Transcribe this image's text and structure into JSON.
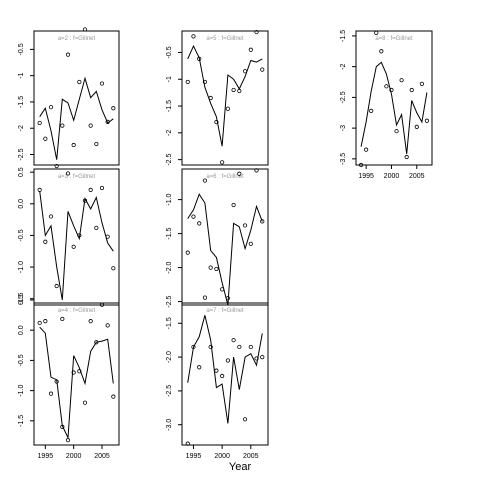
{
  "figure": {
    "xlabel": "Year"
  },
  "chart_data": [
    {
      "type": "line",
      "title": "a=2  :  f=Gillnet",
      "xlim": [
        1993,
        2008
      ],
      "ylim": [
        -2.7,
        -0.15
      ],
      "yticks": [
        -2.5,
        -2.0,
        -1.5,
        -1.0,
        -0.5
      ],
      "ytick_labels": [
        "-2.5",
        "-2",
        "-1.5",
        "-1",
        "-0.5"
      ],
      "xticks": [],
      "xtick_labels": [],
      "series": [
        {
          "kind": "fit",
          "x": [
            1994,
            1995,
            1996,
            1997,
            1998,
            1999,
            2000,
            2001,
            2002,
            2003,
            2004,
            2005,
            2006,
            2007
          ],
          "y": [
            -1.78,
            -1.62,
            -2.05,
            -2.6,
            -1.45,
            -1.52,
            -1.85,
            -1.45,
            -1.05,
            -1.42,
            -1.3,
            -1.65,
            -1.9,
            -1.82
          ]
        },
        {
          "kind": "observed",
          "x": [
            1994,
            1995,
            1996,
            1997,
            1998,
            1999,
            2000,
            2001,
            2002,
            2003,
            2004,
            2005,
            2006,
            2007
          ],
          "y": [
            -1.9,
            -2.2,
            -1.6,
            -2.72,
            -1.95,
            -0.6,
            -2.32,
            -1.12,
            -0.12,
            -1.95,
            -2.3,
            -1.15,
            -1.88,
            -1.62
          ]
        }
      ]
    },
    {
      "type": "line",
      "title": "a=5  :  f=Gillnet",
      "xlim": [
        1993,
        2008
      ],
      "ylim": [
        -2.6,
        -0.1
      ],
      "yticks": [
        -2.5,
        -2.0,
        -1.5,
        -1.0,
        -0.5
      ],
      "ytick_labels": [
        "-2.5",
        "-2",
        "-1.5",
        "-1",
        "-0.5"
      ],
      "xticks": [],
      "xtick_labels": [],
      "series": [
        {
          "kind": "fit",
          "x": [
            1994,
            1995,
            1996,
            1997,
            1998,
            1999,
            2000,
            2001,
            2002,
            2003,
            2004,
            2005,
            2006,
            2007
          ],
          "y": [
            -0.62,
            -0.38,
            -0.6,
            -1.15,
            -1.45,
            -1.7,
            -2.25,
            -0.92,
            -1.0,
            -1.18,
            -0.95,
            -0.65,
            -0.68,
            -0.62
          ]
        },
        {
          "kind": "observed",
          "x": [
            1994,
            1995,
            1996,
            1997,
            1998,
            1999,
            2000,
            2001,
            2002,
            2003,
            2004,
            2005,
            2006,
            2007
          ],
          "y": [
            -1.05,
            -0.2,
            -0.62,
            -1.05,
            -1.35,
            -1.8,
            -2.55,
            -1.55,
            -1.2,
            -1.22,
            -0.85,
            -0.45,
            -0.12,
            -0.82
          ]
        }
      ]
    },
    {
      "type": "line",
      "title": "a=8  :  f=Gillnet",
      "xlim": [
        1993,
        2008
      ],
      "ylim": [
        -3.6,
        -1.42
      ],
      "yticks": [
        -3.5,
        -3.0,
        -2.5,
        -2.0,
        -1.5
      ],
      "ytick_labels": [
        "-3.5",
        "-3",
        "-2.5",
        "-2",
        "-1.5"
      ],
      "xticks": [
        1995,
        2000,
        2005
      ],
      "xtick_labels": [
        "1995",
        "2000",
        "2005"
      ],
      "series": [
        {
          "kind": "fit",
          "x": [
            1994,
            1995,
            1996,
            1997,
            1998,
            1999,
            2000,
            2001,
            2002,
            2003,
            2004,
            2005,
            2006,
            2007
          ],
          "y": [
            -3.3,
            -2.9,
            -2.4,
            -2.0,
            -1.93,
            -2.12,
            -2.45,
            -2.95,
            -2.78,
            -3.42,
            -2.55,
            -2.75,
            -2.9,
            -2.42
          ]
        },
        {
          "kind": "observed",
          "x": [
            1994,
            1995,
            1996,
            1997,
            1998,
            1999,
            2000,
            2001,
            2002,
            2003,
            2004,
            2005,
            2006,
            2007
          ],
          "y": [
            -3.6,
            -3.35,
            -2.72,
            -1.45,
            -1.75,
            -2.32,
            -2.38,
            -3.05,
            -2.22,
            -3.47,
            -2.38,
            -2.98,
            -2.28,
            -2.88
          ]
        }
      ]
    },
    {
      "type": "line",
      "title": "a=3  :  f=Gillnet",
      "xlim": [
        1993,
        2008
      ],
      "ylim": [
        -1.6,
        0.55
      ],
      "yticks": [
        -1.5,
        -1.0,
        -0.5,
        0.0,
        0.5
      ],
      "ytick_labels": [
        "-1.5",
        "-1.0",
        "-0.5",
        "0.0",
        "0.5"
      ],
      "xticks": [],
      "xtick_labels": [],
      "series": [
        {
          "kind": "fit",
          "x": [
            1994,
            1995,
            1996,
            1997,
            1998,
            1999,
            2000,
            2001,
            2002,
            2003,
            2004,
            2005,
            2006,
            2007
          ],
          "y": [
            0.2,
            -0.5,
            -0.35,
            -1.0,
            -1.52,
            -0.12,
            -0.35,
            -0.55,
            0.08,
            -0.08,
            0.1,
            -0.3,
            -0.62,
            -0.75
          ]
        },
        {
          "kind": "observed",
          "x": [
            1994,
            1995,
            1996,
            1997,
            1998,
            1999,
            2000,
            2001,
            2002,
            2003,
            2004,
            2005,
            2006,
            2007
          ],
          "y": [
            0.22,
            -0.6,
            -0.2,
            -1.3,
            -1.82,
            0.48,
            -0.68,
            -0.5,
            0.05,
            0.22,
            -0.38,
            0.25,
            -0.52,
            -1.02
          ]
        }
      ]
    },
    {
      "type": "line",
      "title": "a=6  :  f=Gillnet",
      "xlim": [
        1993,
        2008
      ],
      "ylim": [
        -2.55,
        -0.55
      ],
      "yticks": [
        -2.5,
        -2.0,
        -1.5,
        -1.0
      ],
      "ytick_labels": [
        "-2.5",
        "-2.0",
        "-1.5",
        "-1.0"
      ],
      "xticks": [],
      "xtick_labels": [],
      "series": [
        {
          "kind": "fit",
          "x": [
            1994,
            1995,
            1996,
            1997,
            1998,
            1999,
            2000,
            2001,
            2002,
            2003,
            2004,
            2005,
            2006,
            2007
          ],
          "y": [
            -1.28,
            -1.15,
            -0.92,
            -1.05,
            -1.75,
            -1.85,
            -2.22,
            -2.55,
            -1.35,
            -1.4,
            -1.72,
            -1.45,
            -1.1,
            -1.32
          ]
        },
        {
          "kind": "observed",
          "x": [
            1994,
            1995,
            1996,
            1997,
            1998,
            1999,
            2000,
            2001,
            2002,
            2003,
            2004,
            2005,
            2006,
            2007
          ],
          "y": [
            -1.78,
            -1.25,
            -1.35,
            -0.72,
            -2.0,
            -2.02,
            -2.32,
            -2.45,
            -1.08,
            -0.62,
            -1.38,
            -1.65,
            -0.57,
            -1.32
          ]
        }
      ]
    },
    {
      "type": "line",
      "title": "a=4  :  f=Gillnet",
      "xlim": [
        1993,
        2008
      ],
      "ylim": [
        -1.9,
        0.45
      ],
      "yticks": [
        -1.5,
        -1.0,
        -0.5,
        0.0,
        0.5
      ],
      "ytick_labels": [
        "-1.5",
        "-1.0",
        "-0.5",
        "0.0",
        "0.5"
      ],
      "xticks": [
        1995,
        2000,
        2005
      ],
      "xtick_labels": [
        "1995",
        "2000",
        "2005"
      ],
      "series": [
        {
          "kind": "fit",
          "x": [
            1994,
            1995,
            1996,
            1997,
            1998,
            1999,
            2000,
            2001,
            2002,
            2003,
            2004,
            2005,
            2006,
            2007
          ],
          "y": [
            0.05,
            -0.05,
            -0.78,
            -0.82,
            -1.58,
            -1.78,
            -0.42,
            -0.62,
            -0.88,
            -0.35,
            -0.2,
            -0.18,
            -0.15,
            -0.88
          ]
        },
        {
          "kind": "observed",
          "x": [
            1994,
            1995,
            1996,
            1997,
            1998,
            1999,
            2000,
            2001,
            2002,
            2003,
            2004,
            2005,
            2006,
            2007
          ],
          "y": [
            0.12,
            0.15,
            -1.05,
            -0.85,
            -1.6,
            -1.82,
            -0.7,
            -0.68,
            -1.2,
            0.15,
            -0.2,
            0.42,
            0.08,
            -1.1
          ]
        }
      ]
    },
    {
      "type": "line",
      "title": "a=7  :  f=Gillnet",
      "xlim": [
        1993,
        2008
      ],
      "ylim": [
        -3.3,
        -1.2
      ],
      "yticks": [
        -3.0,
        -2.5,
        -2.0,
        -1.5
      ],
      "ytick_labels": [
        "-3.0",
        "-2.5",
        "-2.0",
        "-1.5"
      ],
      "xticks": [
        1995,
        2000,
        2005
      ],
      "xtick_labels": [
        "1995",
        "2000",
        "2005"
      ],
      "series": [
        {
          "kind": "fit",
          "x": [
            1994,
            1995,
            1996,
            1997,
            1998,
            1999,
            2000,
            2001,
            2002,
            2003,
            2004,
            2005,
            2006,
            2007
          ],
          "y": [
            -2.38,
            -1.85,
            -1.7,
            -1.38,
            -1.75,
            -2.45,
            -2.4,
            -2.98,
            -2.0,
            -2.48,
            -2.0,
            -1.95,
            -2.12,
            -1.65
          ]
        },
        {
          "kind": "observed",
          "x": [
            1994,
            1995,
            1996,
            1997,
            1998,
            1999,
            2000,
            2001,
            2002,
            2003,
            2004,
            2005,
            2006,
            2007
          ],
          "y": [
            -3.28,
            -1.85,
            -2.15,
            -1.12,
            -1.85,
            -2.2,
            -2.28,
            -2.05,
            -1.75,
            -1.85,
            -2.92,
            -1.85,
            -2.02,
            -2.0
          ]
        }
      ]
    }
  ]
}
